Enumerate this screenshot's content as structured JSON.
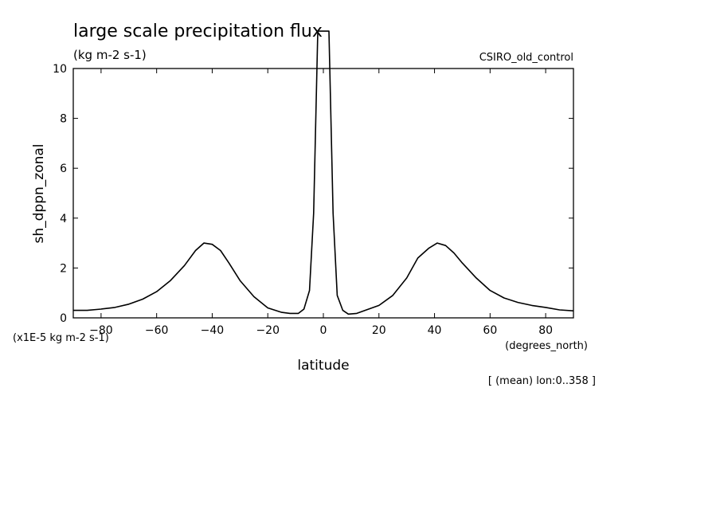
{
  "chart_data": {
    "type": "line",
    "title": "large scale precipitation flux",
    "subtitle": "(kg m-2 s-1)",
    "dataset": "CSIRO_old_control",
    "xlabel": "latitude",
    "ylabel": "sh_dppn_zonal",
    "x_units": "(degrees_north)",
    "y_units": "(x1E-5 kg m-2 s-1)",
    "footnote": "[ (mean) lon:0..358 ]",
    "xlim": [
      -90,
      90
    ],
    "ylim": [
      0,
      10
    ],
    "x_ticks": [
      -80,
      -60,
      -40,
      -20,
      0,
      20,
      40,
      60,
      80
    ],
    "y_ticks": [
      0,
      2,
      4,
      6,
      8,
      10
    ],
    "grid": false,
    "series": [
      {
        "x": [
          -90,
          -85,
          -80,
          -75,
          -70,
          -65,
          -60,
          -55,
          -50,
          -46,
          -43,
          -40,
          -37,
          -34,
          -30,
          -25,
          -20,
          -15,
          -12,
          -9,
          -7,
          -5,
          -3.5,
          -2,
          2,
          3.5,
          5,
          7,
          9,
          12,
          15,
          20,
          25,
          30,
          34,
          38,
          41,
          44,
          47,
          50,
          55,
          60,
          65,
          70,
          75,
          80,
          85,
          90
        ],
        "y": [
          0.3,
          0.3,
          0.35,
          0.42,
          0.55,
          0.75,
          1.05,
          1.5,
          2.1,
          2.7,
          3.0,
          2.95,
          2.7,
          2.2,
          1.5,
          0.85,
          0.4,
          0.22,
          0.18,
          0.18,
          0.35,
          1.1,
          4.2,
          11.5,
          11.5,
          4.2,
          0.9,
          0.3,
          0.15,
          0.18,
          0.3,
          0.5,
          0.9,
          1.6,
          2.4,
          2.8,
          3.0,
          2.9,
          2.6,
          2.2,
          1.6,
          1.1,
          0.8,
          0.62,
          0.5,
          0.42,
          0.32,
          0.28
        ]
      }
    ]
  }
}
